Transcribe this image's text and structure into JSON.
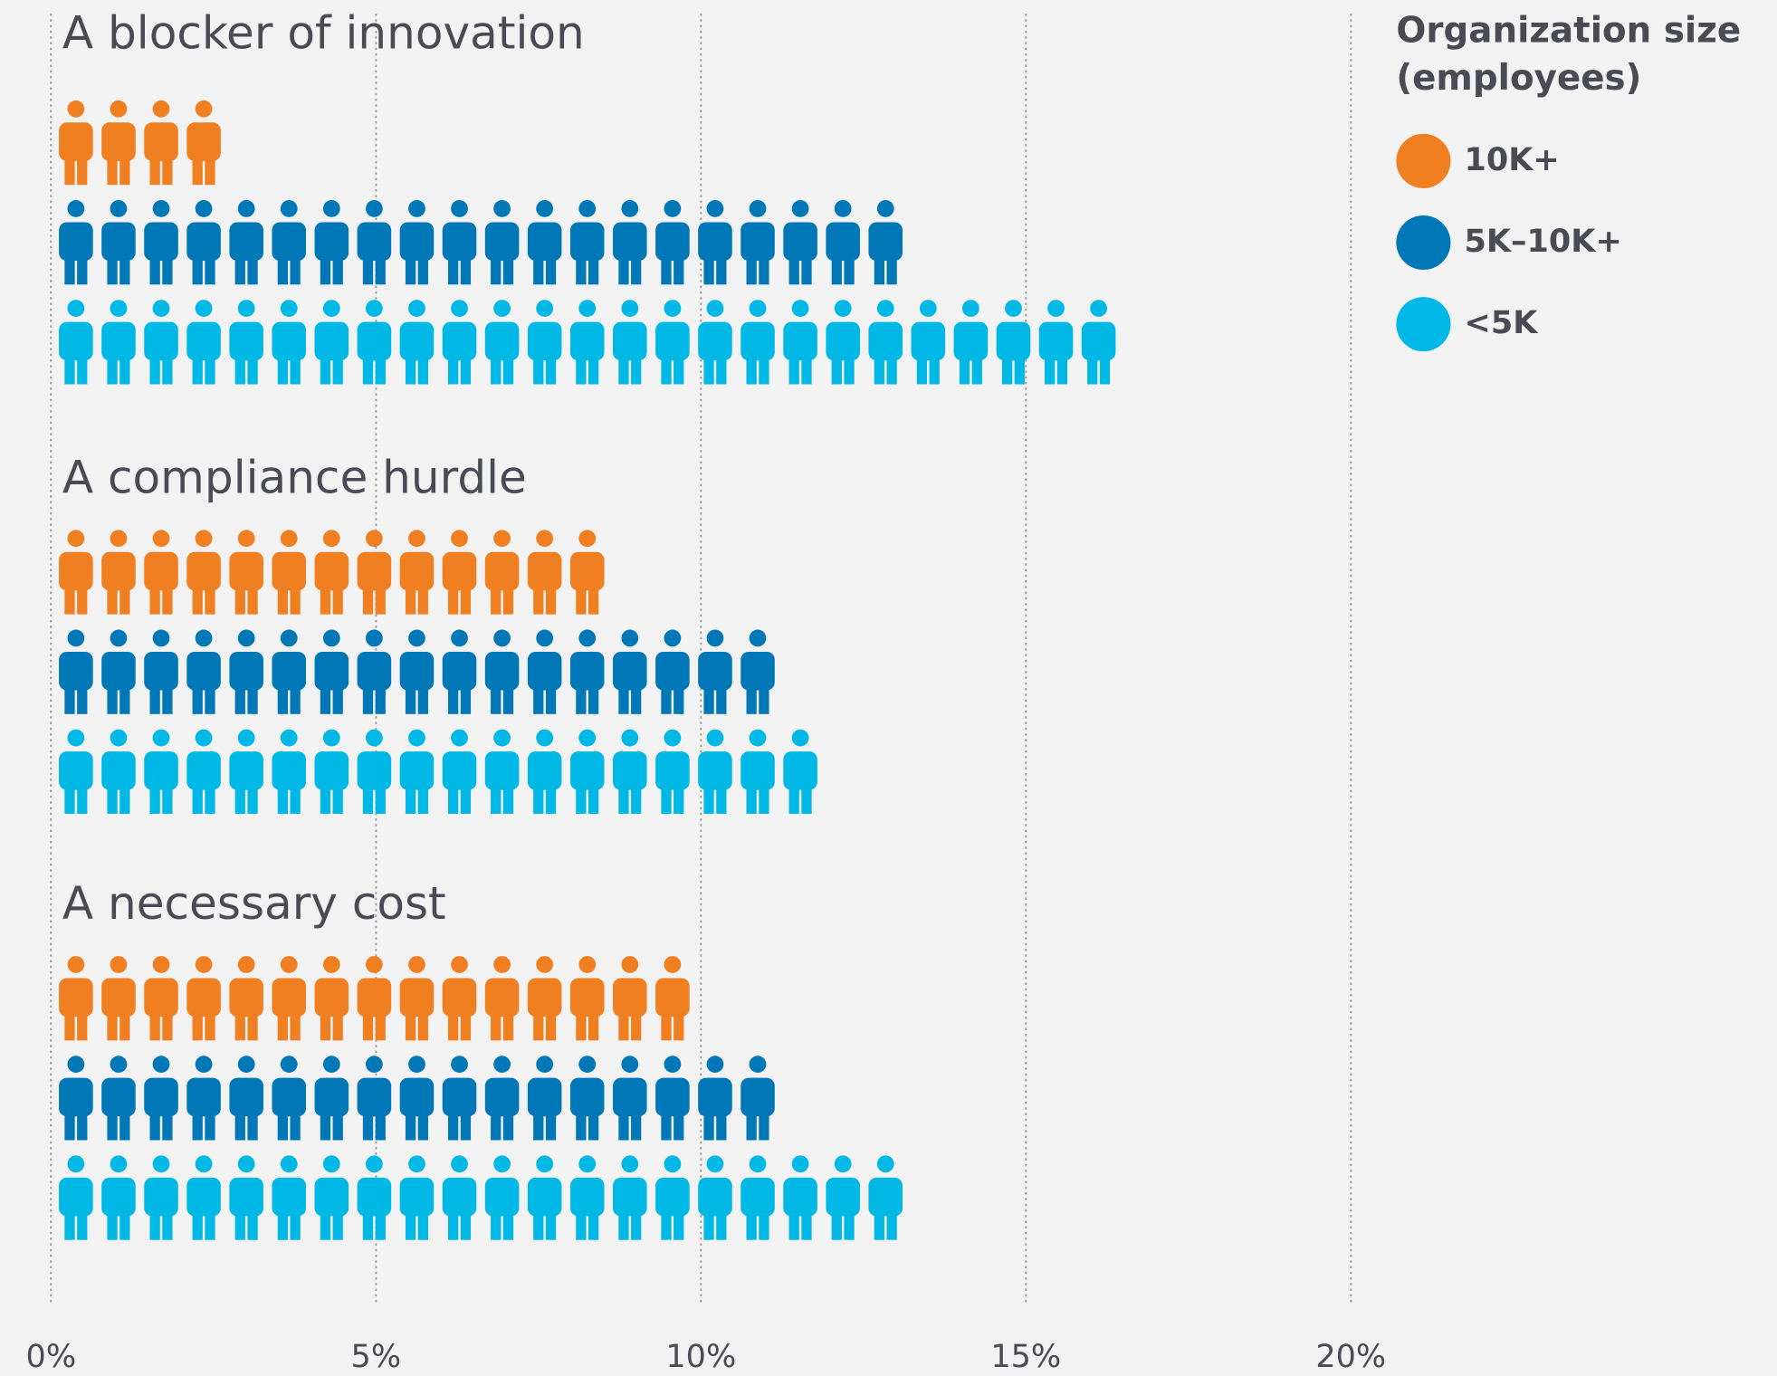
{
  "chart_data": {
    "type": "pictogram",
    "categories": [
      "A blocker of innovation",
      "A compliance hurdle",
      "A necessary cost"
    ],
    "series": [
      {
        "name": "10K+",
        "color": "#f07f22",
        "values": [
          2.6,
          8.5,
          9.8
        ]
      },
      {
        "name": "5K–10K+",
        "color": "#0077b6",
        "values": [
          13.1,
          11.1,
          11.1
        ]
      },
      {
        "name": "<5K",
        "color": "#00b8e6",
        "values": [
          16.4,
          11.7,
          13.0
        ]
      }
    ],
    "xlim": [
      0,
      20
    ],
    "xticks": [
      {
        "value": 0,
        "label": "0%"
      },
      {
        "value": 5,
        "label": "5%"
      },
      {
        "value": 10,
        "label": "10%"
      },
      {
        "value": 15,
        "label": "15%"
      },
      {
        "value": 20,
        "label": "20%"
      }
    ],
    "grid": true,
    "legend_title": "Organization size (employees)",
    "legend_position": "top-right"
  }
}
